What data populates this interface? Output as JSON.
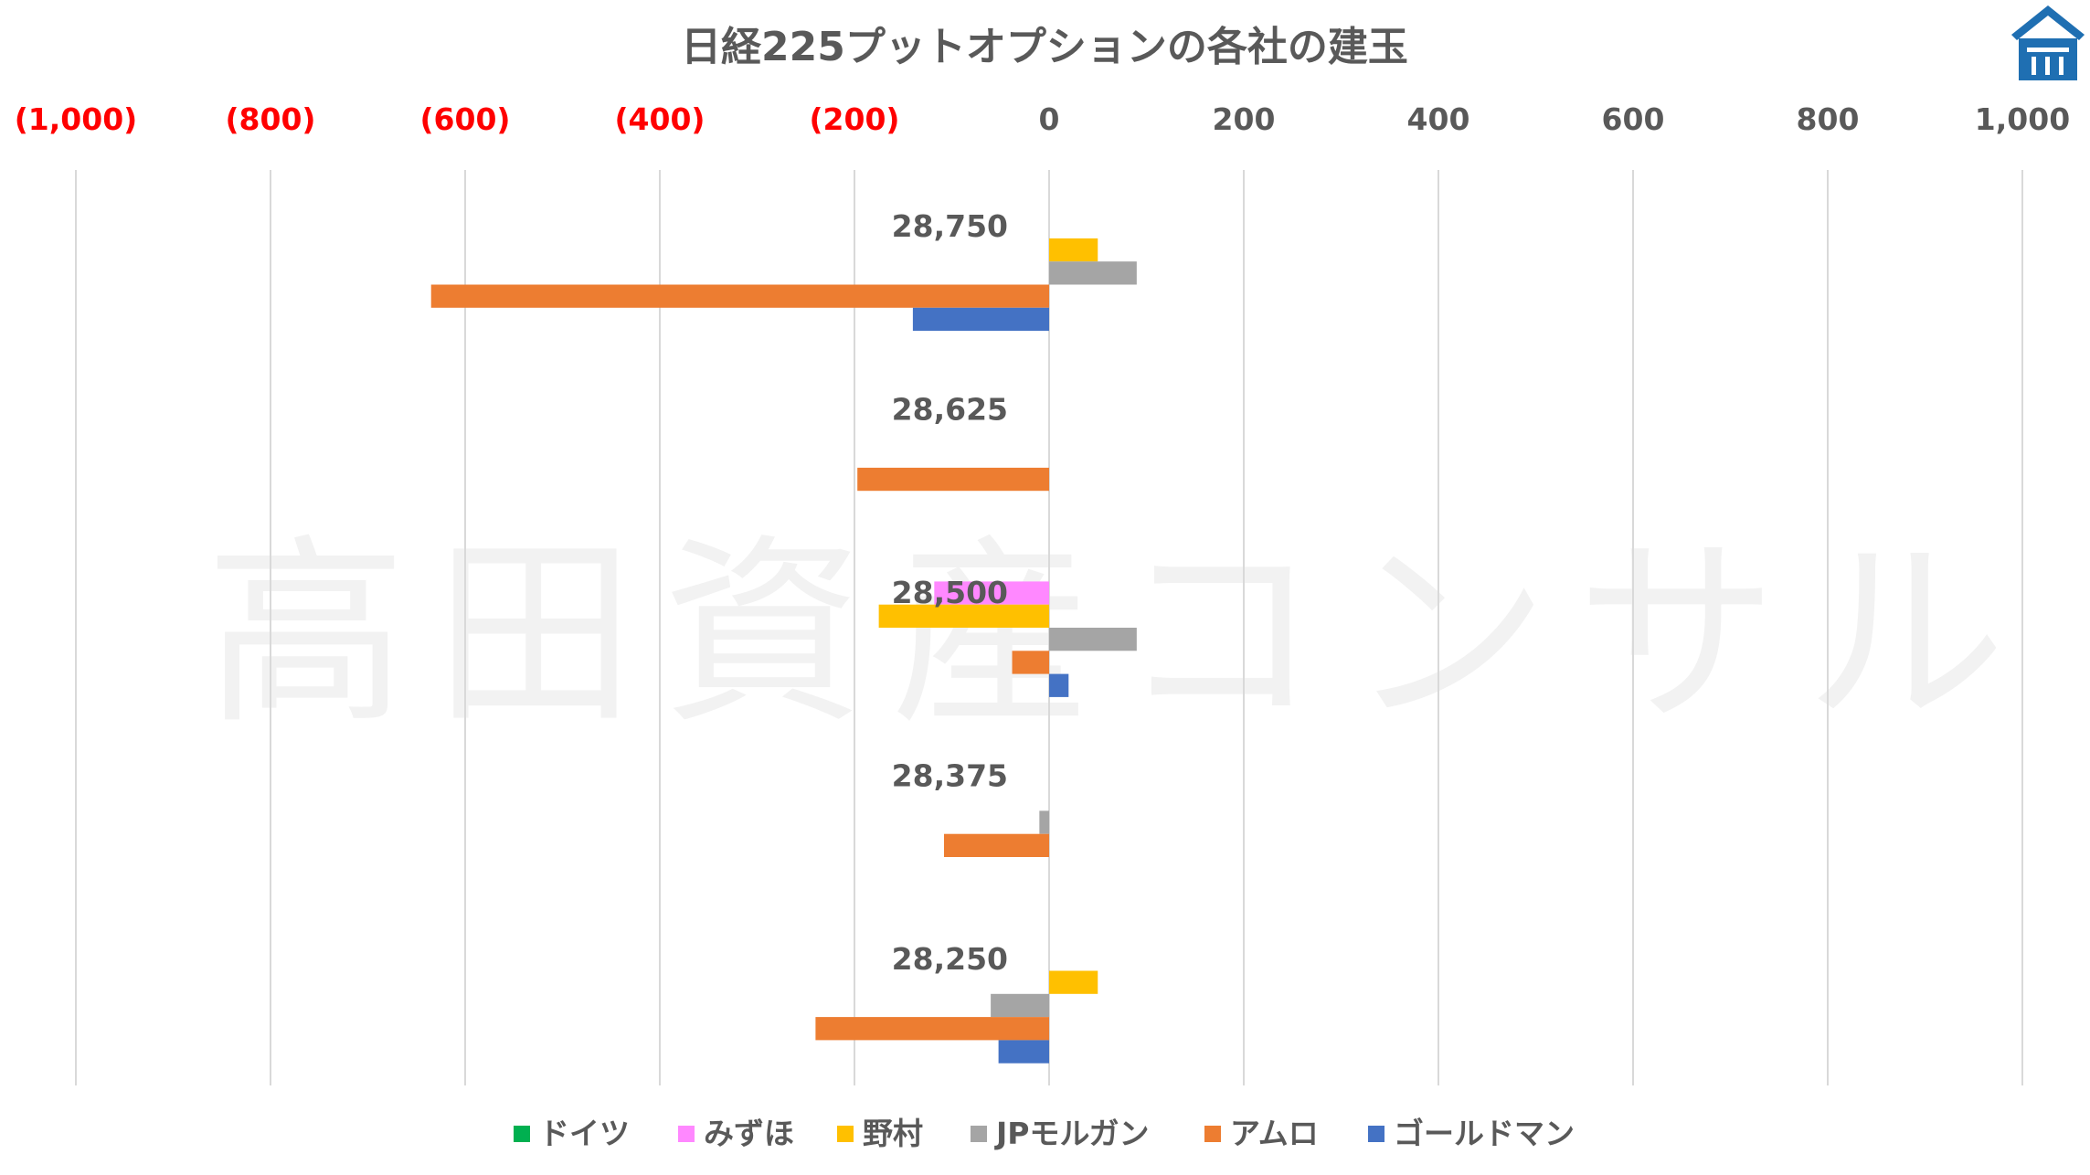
{
  "chart_data": {
    "type": "bar",
    "orientation": "horizontal",
    "title": "日経225プットオプションの各社の建玉",
    "watermark": "高田資産コンサル",
    "xlim": [
      -1000,
      1000
    ],
    "x_ticks": [
      -1000,
      -800,
      -600,
      -400,
      -200,
      0,
      200,
      400,
      600,
      800,
      1000
    ],
    "x_tick_labels": [
      "(1,000)",
      "(800)",
      "(600)",
      "(400)",
      "(200)",
      "0",
      "200",
      "400",
      "600",
      "800",
      "1,000"
    ],
    "negative_tick_color": "#ff0000",
    "positive_tick_color": "#595959",
    "grid": true,
    "legend_position": "bottom",
    "categories": [
      "28,750",
      "28,625",
      "28,500",
      "28,375",
      "28,250"
    ],
    "series": [
      {
        "name": "ドイツ",
        "color": "#00b050",
        "values": [
          0,
          0,
          0,
          0,
          0
        ]
      },
      {
        "name": "みずほ",
        "color": "#ff88ff",
        "values": [
          0,
          0,
          -118,
          0,
          0
        ]
      },
      {
        "name": "野村",
        "color": "#ffc000",
        "values": [
          50,
          0,
          -175,
          0,
          50
        ]
      },
      {
        "name": "JPモルガン",
        "color": "#a5a5a5",
        "values": [
          90,
          0,
          90,
          -10,
          -60
        ]
      },
      {
        "name": "アムロ",
        "color": "#ed7d31",
        "values": [
          -635,
          -197,
          -38,
          -108,
          -240
        ]
      },
      {
        "name": "ゴールドマン",
        "color": "#4472c4",
        "values": [
          -140,
          0,
          20,
          0,
          -52
        ]
      }
    ]
  }
}
